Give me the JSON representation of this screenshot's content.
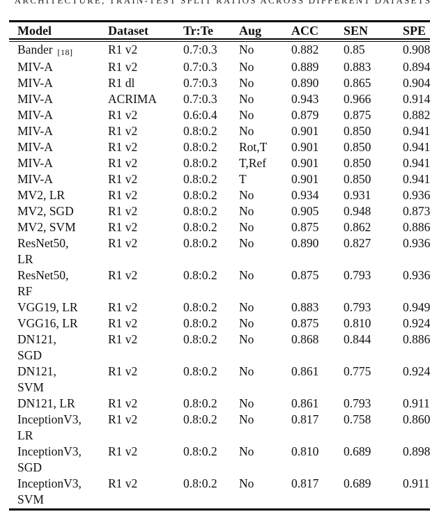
{
  "caption_fragment": "ARCHITECTURE, TRAIN-TEST SPLIT RATIOS ACROSS DIFFERENT DATASETS",
  "table": {
    "columns": [
      "Model",
      "Dataset",
      "Tr:Te",
      "Aug",
      "ACC",
      "SEN",
      "SPE"
    ],
    "rows": [
      {
        "model": "Bander",
        "citation": "[18]",
        "dataset": "R1 v2",
        "tr_te": "0.7:0.3",
        "aug": "No",
        "acc": "0.882",
        "sen": "0.85",
        "spe": "0.908"
      },
      {
        "model": "MIV-A",
        "dataset": "R1 v2",
        "tr_te": "0.7:0.3",
        "aug": "No",
        "acc": "0.889",
        "sen": "0.883",
        "spe": "0.894"
      },
      {
        "model": "MIV-A",
        "dataset": "R1 dl",
        "tr_te": "0.7:0.3",
        "aug": "No",
        "acc": "0.890",
        "sen": "0.865",
        "spe": "0.904"
      },
      {
        "model": "MIV-A",
        "dataset": "ACRIMA",
        "tr_te": "0.7:0.3",
        "aug": "No",
        "acc": "0.943",
        "sen": "0.966",
        "spe": "0.914"
      },
      {
        "model": "MIV-A",
        "dataset": "R1 v2",
        "tr_te": "0.6:0.4",
        "aug": "No",
        "acc": "0.879",
        "sen": "0.875",
        "spe": "0.882"
      },
      {
        "model": "MIV-A",
        "dataset": "R1 v2",
        "tr_te": "0.8:0.2",
        "aug": "No",
        "acc": "0.901",
        "sen": "0.850",
        "spe": "0.941"
      },
      {
        "model": "MIV-A",
        "dataset": "R1 v2",
        "tr_te": "0.8:0.2",
        "aug": "Rot,T",
        "acc": "0.901",
        "sen": "0.850",
        "spe": "0.941"
      },
      {
        "model": "MIV-A",
        "dataset": "R1 v2",
        "tr_te": "0.8:0.2",
        "aug": "T,Ref",
        "acc": "0.901",
        "sen": "0.850",
        "spe": "0.941"
      },
      {
        "model": "MIV-A",
        "dataset": "R1 v2",
        "tr_te": "0.8:0.2",
        "aug": "T",
        "acc": "0.901",
        "sen": "0.850",
        "spe": "0.941"
      },
      {
        "model": "MV2, LR",
        "dataset": "R1 v2",
        "tr_te": "0.8:0.2",
        "aug": "No",
        "acc": "0.934",
        "sen": "0.931",
        "spe": "0.936"
      },
      {
        "model": "MV2, SGD",
        "dataset": "R1 v2",
        "tr_te": "0.8:0.2",
        "aug": "No",
        "acc": "0.905",
        "sen": "0.948",
        "spe": "0.873"
      },
      {
        "model": "MV2, SVM",
        "dataset": "R1 v2",
        "tr_te": "0.8:0.2",
        "aug": "No",
        "acc": "0.875",
        "sen": "0.862",
        "spe": "0.886"
      },
      {
        "model": "ResNet50,\nLR",
        "dataset": "R1 v2",
        "tr_te": "0.8:0.2",
        "aug": "No",
        "acc": "0.890",
        "sen": "0.827",
        "spe": "0.936"
      },
      {
        "model": "ResNet50,\nRF",
        "dataset": "R1 v2",
        "tr_te": "0.8:0.2",
        "aug": "No",
        "acc": "0.875",
        "sen": "0.793",
        "spe": "0.936"
      },
      {
        "model": "VGG19, LR",
        "dataset": "R1 v2",
        "tr_te": "0.8:0.2",
        "aug": "No",
        "acc": "0.883",
        "sen": "0.793",
        "spe": "0.949"
      },
      {
        "model": "VGG16, LR",
        "dataset": "R1 v2",
        "tr_te": "0.8:0.2",
        "aug": "No",
        "acc": "0.875",
        "sen": "0.810",
        "spe": "0.924"
      },
      {
        "model": "DN121,\nSGD",
        "dataset": "R1 v2",
        "tr_te": "0.8:0.2",
        "aug": "No",
        "acc": "0.868",
        "sen": "0.844",
        "spe": "0.886"
      },
      {
        "model": "DN121,\nSVM",
        "dataset": "R1 v2",
        "tr_te": "0.8:0.2",
        "aug": "No",
        "acc": "0.861",
        "sen": "0.775",
        "spe": "0.924"
      },
      {
        "model": "DN121, LR",
        "dataset": "R1 v2",
        "tr_te": "0.8:0.2",
        "aug": "No",
        "acc": "0.861",
        "sen": "0.793",
        "spe": "0.911"
      },
      {
        "model": "InceptionV3,\nLR",
        "dataset": "R1 v2",
        "tr_te": "0.8:0.2",
        "aug": "No",
        "acc": "0.817",
        "sen": "0.758",
        "spe": "0.860"
      },
      {
        "model": "InceptionV3,\nSGD",
        "dataset": "R1 v2",
        "tr_te": "0.8:0.2",
        "aug": "No",
        "acc": "0.810",
        "sen": "0.689",
        "spe": "0.898"
      },
      {
        "model": "InceptionV3,\nSVM",
        "dataset": "R1 v2",
        "tr_te": "0.8:0.2",
        "aug": "No",
        "acc": "0.817",
        "sen": "0.689",
        "spe": "0.911"
      }
    ]
  }
}
